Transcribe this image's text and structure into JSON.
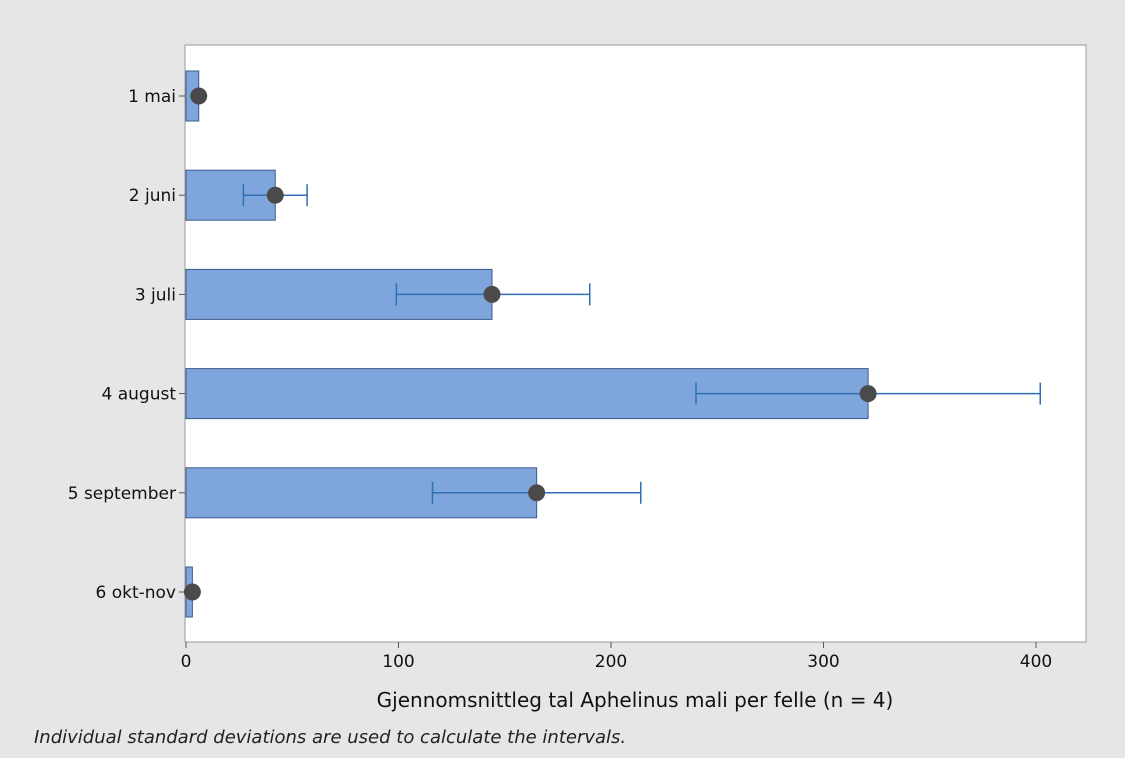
{
  "chart_data": {
    "type": "bar",
    "orientation": "horizontal",
    "title": "",
    "xlabel": "Gjennomsnittleg tal Aphelinus mali per felle (n = 4)",
    "ylabel": "",
    "xlim": [
      0,
      425
    ],
    "xticks": [
      0,
      100,
      200,
      300,
      400
    ],
    "categories": [
      "1 mai",
      "2 juni",
      "3 juli",
      "4 august",
      "5 september",
      "6 okt-nov"
    ],
    "values": [
      6,
      42,
      144,
      321,
      165,
      3
    ],
    "error_low": [
      null,
      27,
      99,
      240,
      116,
      null
    ],
    "error_high": [
      null,
      57,
      190,
      402,
      214,
      null
    ],
    "grid": false,
    "bar_color": "#7ea6dc",
    "bar_edge_color": "#3d5a8a",
    "error_color": "#2f6fb4",
    "marker_color": "#4a4a4a",
    "footnote": "Individual standard deviations are used to calculate the intervals."
  }
}
